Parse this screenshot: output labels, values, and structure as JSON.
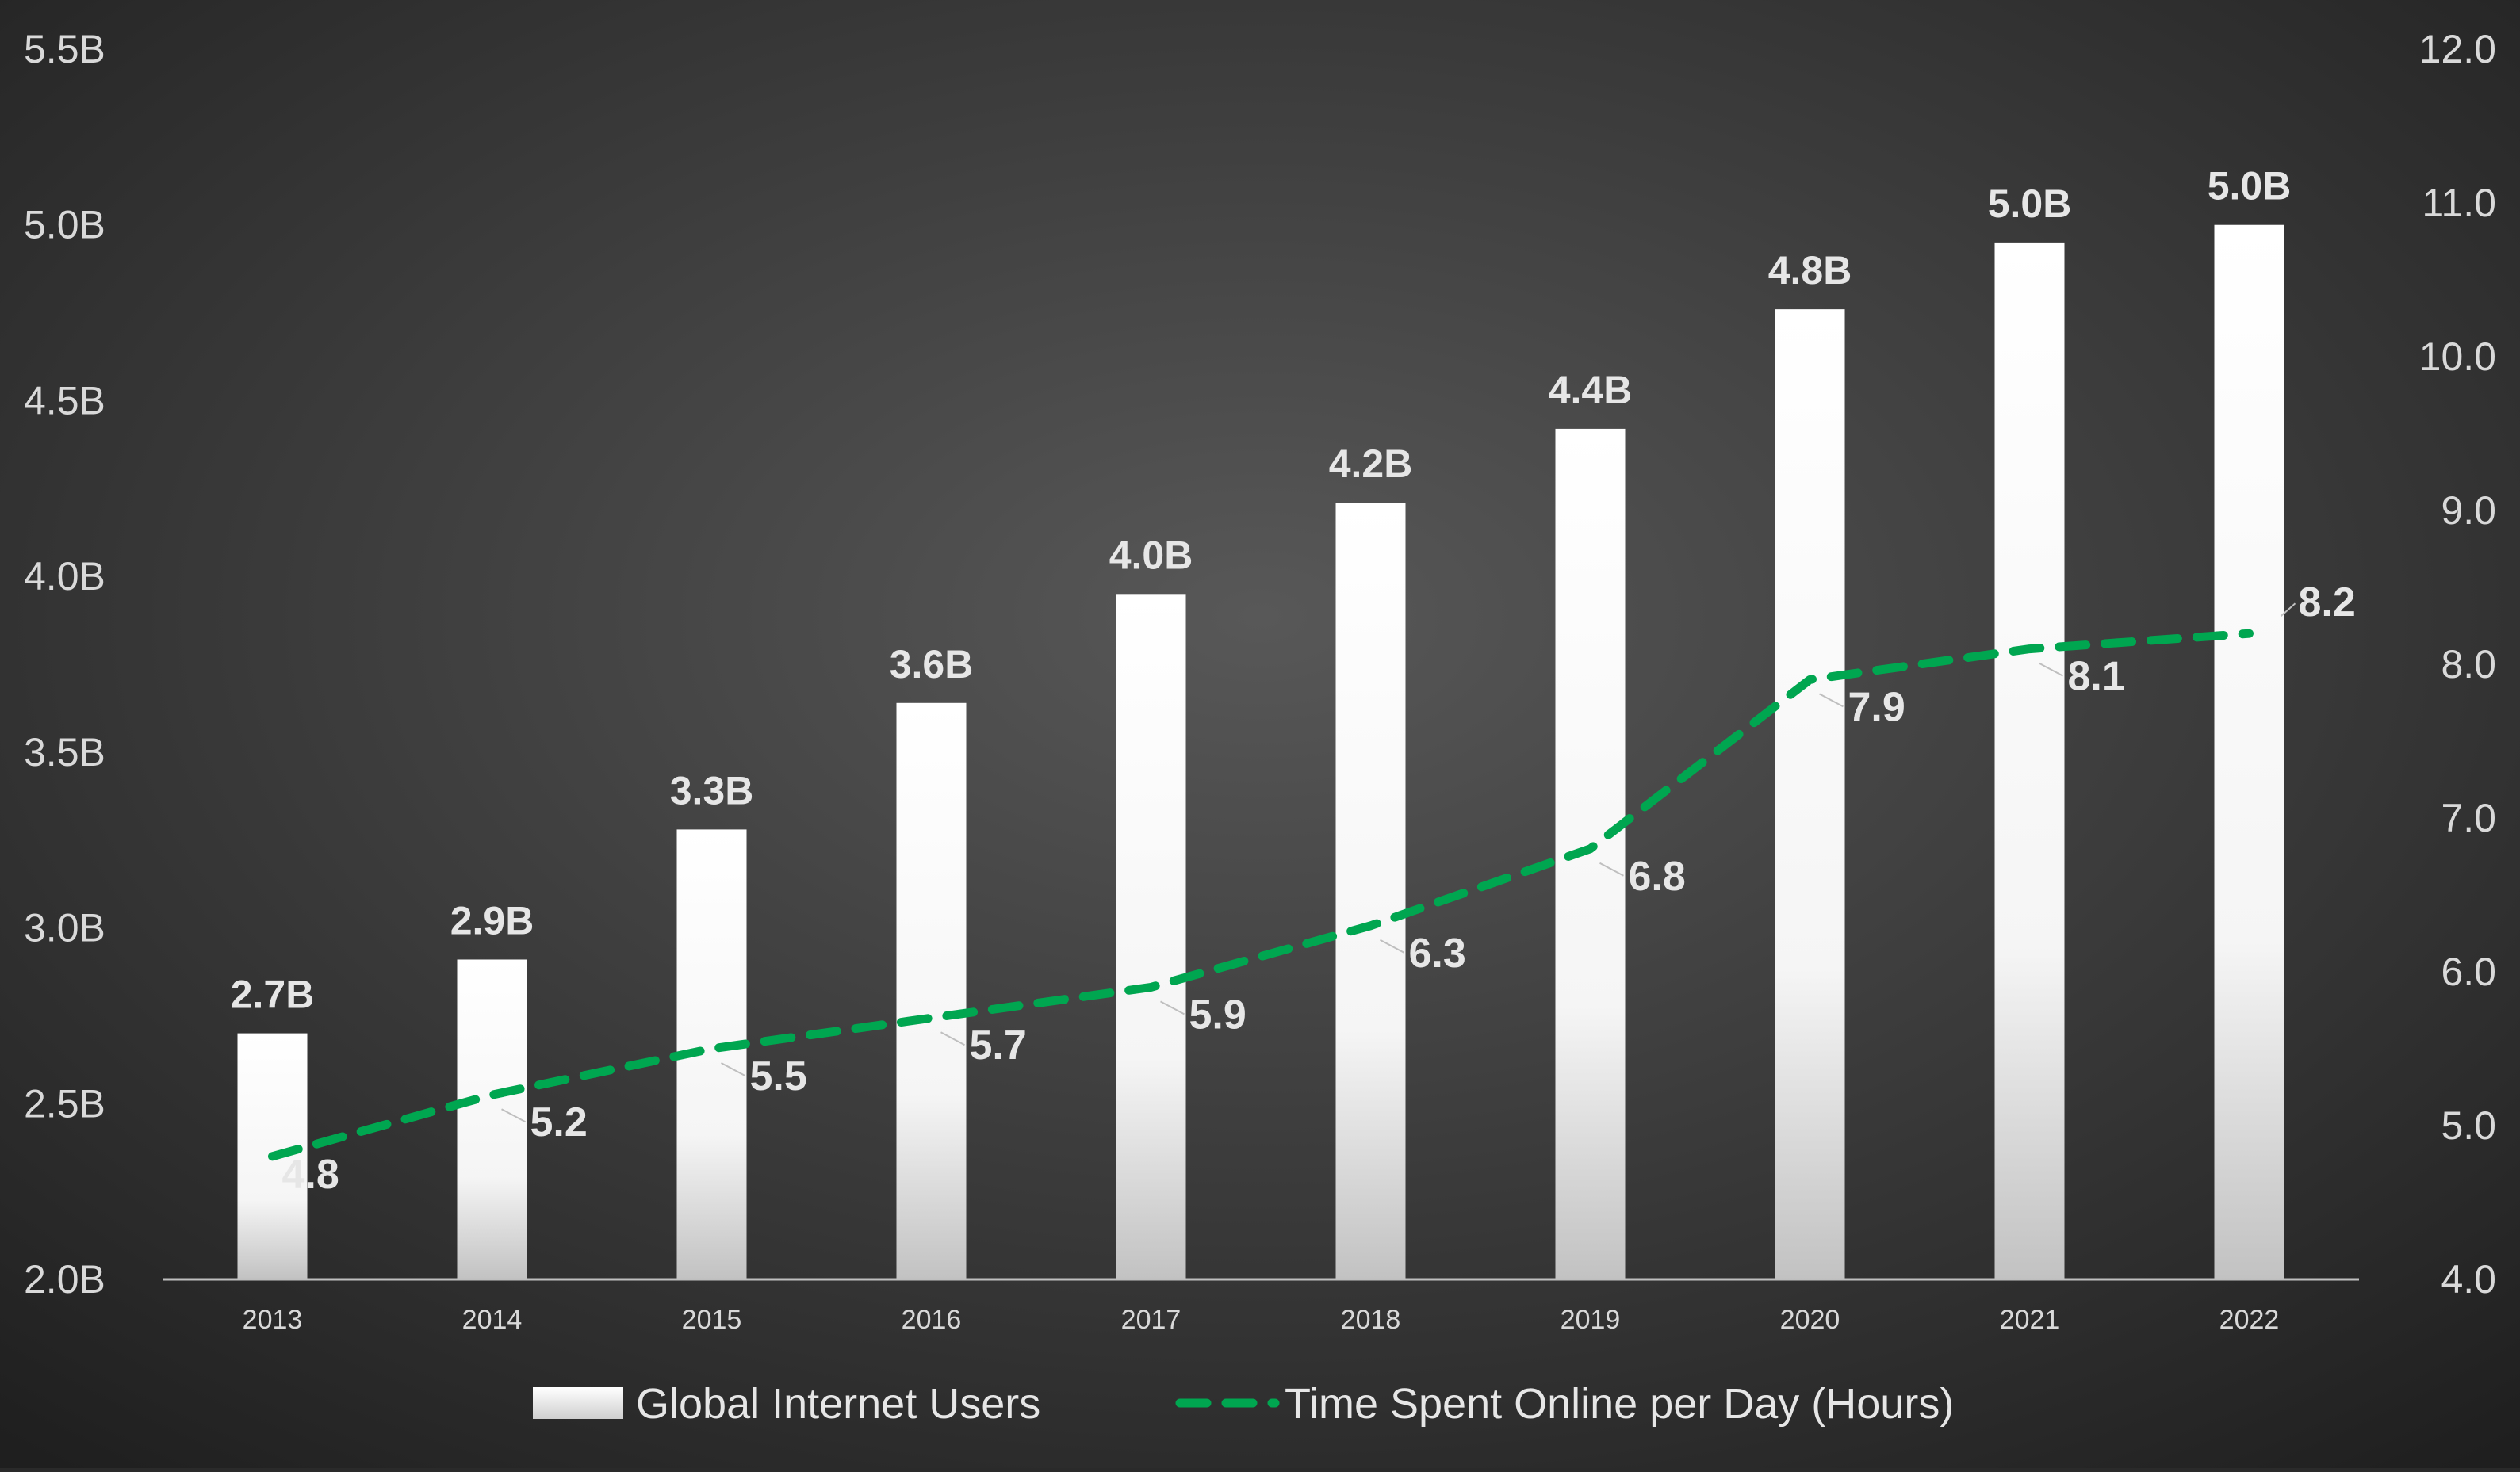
{
  "chart_data": {
    "type": "bar",
    "combo": "bar-line-dual-axis",
    "categories": [
      "2013",
      "2014",
      "2015",
      "2016",
      "2017",
      "2018",
      "2019",
      "2020",
      "2021",
      "2022"
    ],
    "series": [
      {
        "name": "Global Internet Users",
        "type": "bar",
        "axis": "left",
        "values": [
          2.7,
          2.91,
          3.28,
          3.64,
          3.95,
          4.21,
          4.42,
          4.76,
          4.95,
          5.0
        ],
        "labels": [
          "2.7B",
          "2.9B",
          "3.3B",
          "3.6B",
          "4.0B",
          "4.2B",
          "4.4B",
          "4.8B",
          "5.0B",
          "5.0B"
        ],
        "color": "#ffffff"
      },
      {
        "name": "Time Spent Online per Day (Hours)",
        "type": "line",
        "style": "dashed",
        "axis": "right",
        "values": [
          4.8,
          5.2,
          5.5,
          5.7,
          5.9,
          6.3,
          6.8,
          7.9,
          8.1,
          8.2
        ],
        "labels": [
          "4.8",
          "5.2",
          "5.5",
          "5.7",
          "5.9",
          "6.3",
          "6.8",
          "7.9",
          "8.1",
          "8.2"
        ],
        "color": "#00a650"
      }
    ],
    "y_left": {
      "min": 2.0,
      "max": 5.5,
      "ticks": [
        2.0,
        2.5,
        3.0,
        3.5,
        4.0,
        4.5,
        5.0,
        5.5
      ],
      "tick_labels": [
        "2.0B",
        "2.5B",
        "3.0B",
        "3.5B",
        "4.0B",
        "4.5B",
        "5.0B",
        "5.5B"
      ]
    },
    "y_right": {
      "min": 4.0,
      "max": 12.0,
      "ticks": [
        4,
        5,
        6,
        7,
        8,
        9,
        10,
        11,
        12
      ],
      "tick_labels": [
        "4.0",
        "5.0",
        "6.0",
        "7.0",
        "8.0",
        "9.0",
        "10.0",
        "11.0",
        "12.0"
      ]
    },
    "title": "",
    "xlabel": "",
    "ylabel": "",
    "grid": false,
    "legend_position": "bottom-center",
    "colors": {
      "background_center": "#585858",
      "background_edge": "#1f1f1f",
      "axis_line": "#bfbfbf",
      "text": "#d9d9d9"
    }
  }
}
